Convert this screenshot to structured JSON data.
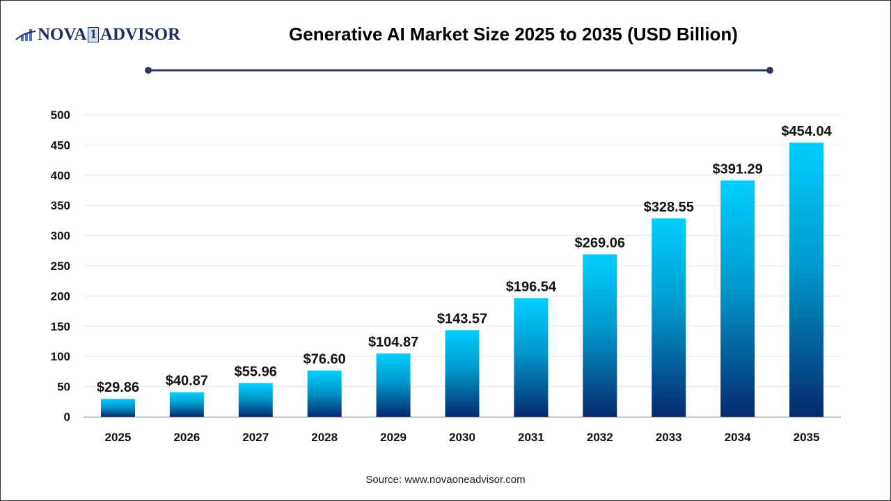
{
  "logo": {
    "text_left": "NOVA",
    "text_mid": "1",
    "text_right": "ADVISOR"
  },
  "source": "Source: www.novaoneadvisor.com",
  "colors": {
    "bar_top": "#00cfff",
    "bar_bottom": "#062a6e",
    "title_rule": "#2a3560"
  },
  "chart_data": {
    "type": "bar",
    "title": "Generative AI Market Size 2025 to 2035 (USD Billion)",
    "xlabel": "",
    "ylabel": "",
    "categories": [
      "2025",
      "2026",
      "2027",
      "2028",
      "2029",
      "2030",
      "2031",
      "2032",
      "2033",
      "2034",
      "2035"
    ],
    "values": [
      29.86,
      40.87,
      55.96,
      76.6,
      104.87,
      143.57,
      196.54,
      269.06,
      328.55,
      391.29,
      454.04
    ],
    "data_labels": [
      "$29.86",
      "$40.87",
      "$55.96",
      "$76.60",
      "$104.87",
      "$143.57",
      "$196.54",
      "$269.06",
      "$328.55",
      "$391.29",
      "$454.04"
    ],
    "ylim": [
      0,
      500
    ],
    "yticks": [
      0,
      50,
      100,
      150,
      200,
      250,
      300,
      350,
      400,
      450,
      500
    ],
    "grid": true,
    "legend": "none"
  }
}
